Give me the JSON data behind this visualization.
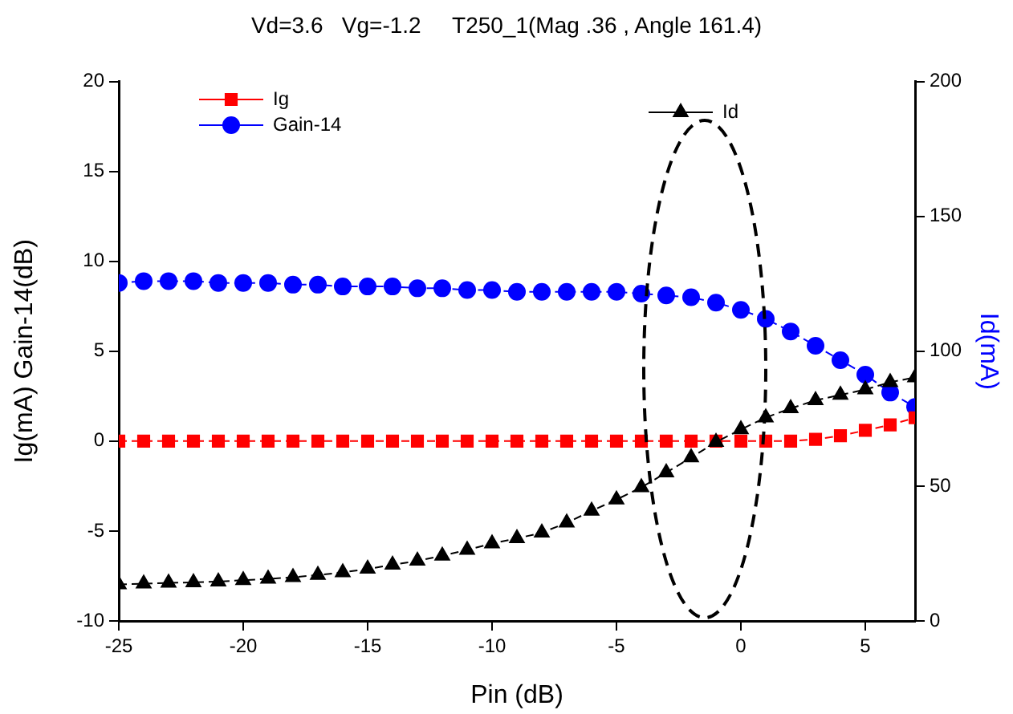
{
  "chart_data": {
    "type": "line",
    "title": "Vd=3.6   Vg=-1.2     T250_1(Mag .36 , Angle 161.4)",
    "xlabel": "Pin (dB)",
    "ylabel": "Ig(mA) Gain-14(dB)",
    "y2label": "Id(mA)",
    "x": [
      -25,
      -24,
      -23,
      -22,
      -21,
      -20,
      -19,
      -18,
      -17,
      -16,
      -15,
      -14,
      -13,
      -12,
      -11,
      -10,
      -9,
      -8,
      -7,
      -6,
      -5,
      -4,
      -3,
      -2,
      -1,
      0,
      1,
      2,
      3,
      4,
      5,
      6,
      7
    ],
    "series": [
      {
        "name": "Ig",
        "color": "#ff0000",
        "marker": "square",
        "values": [
          0,
          0,
          0,
          0,
          0,
          0,
          0,
          0,
          0,
          0,
          0,
          0,
          0,
          0,
          0,
          0,
          0,
          0,
          0,
          0,
          0,
          0,
          0,
          0,
          0,
          0,
          0,
          0,
          0.1,
          0.3,
          0.6,
          0.9,
          1.3
        ]
      },
      {
        "name": "Gain-14",
        "color": "#0000ff",
        "marker": "circle",
        "values": [
          8.8,
          8.9,
          8.9,
          8.9,
          8.8,
          8.8,
          8.8,
          8.7,
          8.7,
          8.6,
          8.6,
          8.6,
          8.5,
          8.5,
          8.4,
          8.4,
          8.3,
          8.3,
          8.3,
          8.3,
          8.3,
          8.2,
          8.1,
          8.0,
          7.7,
          7.3,
          6.8,
          6.1,
          5.3,
          4.5,
          3.7,
          2.7,
          1.9
        ]
      },
      {
        "name": "Id",
        "color": "#000000",
        "marker": "triangle",
        "axis": "y2",
        "values": [
          13.5,
          13.8,
          14.1,
          14.3,
          14.6,
          15.1,
          15.6,
          16.2,
          17,
          18,
          19.3,
          20.8,
          22.3,
          24.2,
          26.3,
          28.7,
          30.6,
          32.7,
          36.4,
          40.8,
          45,
          49.5,
          55,
          60.6,
          66.3,
          71,
          75.4,
          78.8,
          81.8,
          83.8,
          85.8,
          88.5,
          90.3
        ]
      }
    ],
    "xlim": [
      -25,
      7
    ],
    "xticks": [
      -25,
      -20,
      -15,
      -10,
      -5,
      0,
      5
    ],
    "ylim": [
      -10,
      20
    ],
    "yticks": [
      -10,
      -5,
      0,
      5,
      10,
      15,
      20
    ],
    "y2lim": [
      0,
      200
    ],
    "y2ticks": [
      0,
      50,
      100,
      150,
      200
    ],
    "grid": false,
    "legend": "top",
    "line_style": "dashed"
  }
}
